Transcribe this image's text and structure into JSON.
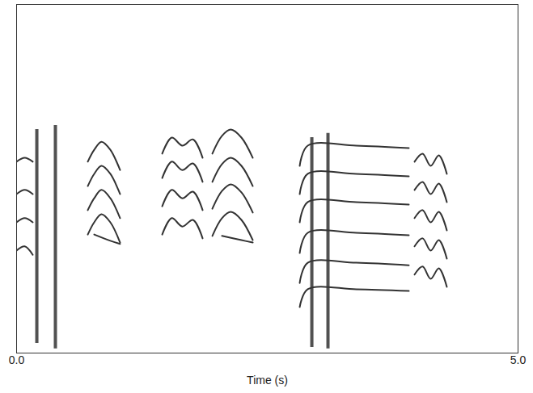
{
  "chart_data": {
    "type": "spectrogram",
    "x_label": "Time (s)",
    "xlim": [
      0,
      5
    ],
    "xticks": [
      0,
      5
    ],
    "ylim": [
      0,
      1
    ],
    "tick_labels": "x",
    "grid": false,
    "color": "#333333",
    "series": [
      {
        "x": [
          0,
          0.081,
          0.161
        ],
        "values": [
          0.549,
          0.56,
          0.549
        ]
      },
      {
        "x": [
          0,
          0.081,
          0.161
        ],
        "values": [
          0.456,
          0.468,
          0.456
        ]
      },
      {
        "x": [
          0,
          0.081,
          0.161
        ],
        "values": [
          0.375,
          0.387,
          0.375
        ]
      },
      {
        "x": [
          0,
          0.081,
          0.161
        ],
        "values": [
          0.294,
          0.306,
          0.282
        ]
      },
      {
        "x": [
          0.71,
          0.774,
          0.847,
          0.935,
          1.032
        ],
        "values": [
          0.549,
          0.583,
          0.606,
          0.583,
          0.525
        ]
      },
      {
        "x": [
          0.71,
          0.774,
          0.847,
          0.935,
          1.032
        ],
        "values": [
          0.479,
          0.514,
          0.537,
          0.514,
          0.456
        ]
      },
      {
        "x": [
          0.71,
          0.774,
          0.847,
          0.935,
          1.032
        ],
        "values": [
          0.41,
          0.444,
          0.468,
          0.444,
          0.387
        ]
      },
      {
        "x": [
          0.71,
          0.774,
          0.847,
          0.935,
          1.032
        ],
        "values": [
          0.34,
          0.375,
          0.398,
          0.375,
          0.317
        ]
      },
      {
        "x": [
          0.774,
          0.935,
          1.032
        ],
        "values": [
          0.34,
          0.322,
          0.313
        ]
      },
      {
        "x": [
          1.452,
          1.548,
          1.653,
          1.758,
          1.855
        ],
        "values": [
          0.572,
          0.618,
          0.595,
          0.613,
          0.56
        ]
      },
      {
        "x": [
          1.452,
          1.548,
          1.653,
          1.758,
          1.855
        ],
        "values": [
          0.502,
          0.549,
          0.525,
          0.544,
          0.491
        ]
      },
      {
        "x": [
          1.452,
          1.548,
          1.653,
          1.758,
          1.855
        ],
        "values": [
          0.421,
          0.468,
          0.444,
          0.463,
          0.41
        ]
      },
      {
        "x": [
          1.452,
          1.548,
          1.653,
          1.758,
          1.855
        ],
        "values": [
          0.34,
          0.387,
          0.363,
          0.382,
          0.329
        ]
      },
      {
        "x": [
          1.952,
          2.048,
          2.137,
          2.242,
          2.355
        ],
        "values": [
          0.572,
          0.623,
          0.641,
          0.618,
          0.56
        ]
      },
      {
        "x": [
          1.952,
          2.048,
          2.137,
          2.242,
          2.355
        ],
        "values": [
          0.491,
          0.542,
          0.56,
          0.537,
          0.479
        ]
      },
      {
        "x": [
          1.952,
          2.048,
          2.137,
          2.242,
          2.355
        ],
        "values": [
          0.414,
          0.465,
          0.484,
          0.461,
          0.403
        ]
      },
      {
        "x": [
          1.952,
          2.048,
          2.137,
          2.242,
          2.355
        ],
        "values": [
          0.336,
          0.387,
          0.405,
          0.382,
          0.324
        ]
      },
      {
        "x": [
          2.048,
          2.242,
          2.355
        ],
        "values": [
          0.336,
          0.324,
          0.317
        ]
      },
      {
        "x": [
          2.823,
          2.903,
          3.387,
          3.911
        ],
        "values": [
          0.537,
          0.595,
          0.595,
          0.588
        ]
      },
      {
        "x": [
          2.823,
          2.903,
          3.387,
          3.911
        ],
        "values": [
          0.456,
          0.514,
          0.514,
          0.507
        ]
      },
      {
        "x": [
          2.823,
          2.903,
          3.387,
          3.911
        ],
        "values": [
          0.375,
          0.433,
          0.433,
          0.426
        ]
      },
      {
        "x": [
          2.823,
          2.903,
          3.387,
          3.911
        ],
        "values": [
          0.287,
          0.345,
          0.345,
          0.338
        ]
      },
      {
        "x": [
          2.823,
          2.903,
          3.387,
          3.911
        ],
        "values": [
          0.201,
          0.259,
          0.259,
          0.252
        ]
      },
      {
        "x": [
          2.823,
          2.903,
          3.387,
          3.911
        ],
        "values": [
          0.132,
          0.183,
          0.183,
          0.178
        ]
      },
      {
        "x": [
          3.968,
          4.048,
          4.129,
          4.21,
          4.29
        ],
        "values": [
          0.549,
          0.572,
          0.537,
          0.567,
          0.514
        ]
      },
      {
        "x": [
          3.968,
          4.048,
          4.129,
          4.21,
          4.29
        ],
        "values": [
          0.468,
          0.491,
          0.456,
          0.486,
          0.433
        ]
      },
      {
        "x": [
          3.968,
          4.048,
          4.129,
          4.21,
          4.29
        ],
        "values": [
          0.387,
          0.41,
          0.375,
          0.405,
          0.352
        ]
      },
      {
        "x": [
          3.968,
          4.048,
          4.129,
          4.21,
          4.29
        ],
        "values": [
          0.306,
          0.329,
          0.294,
          0.324,
          0.271
        ]
      },
      {
        "x": [
          3.968,
          4.048,
          4.129,
          4.21,
          4.29
        ],
        "values": [
          0.225,
          0.248,
          0.213,
          0.243,
          0.19
        ]
      }
    ],
    "clicks": {
      "x": [
        0.202,
        0.387,
        2.944,
        3.105
      ],
      "low": [
        0.028,
        0.012,
        0.016,
        0.012
      ],
      "high": [
        0.641,
        0.653,
        0.618,
        0.63
      ]
    }
  }
}
